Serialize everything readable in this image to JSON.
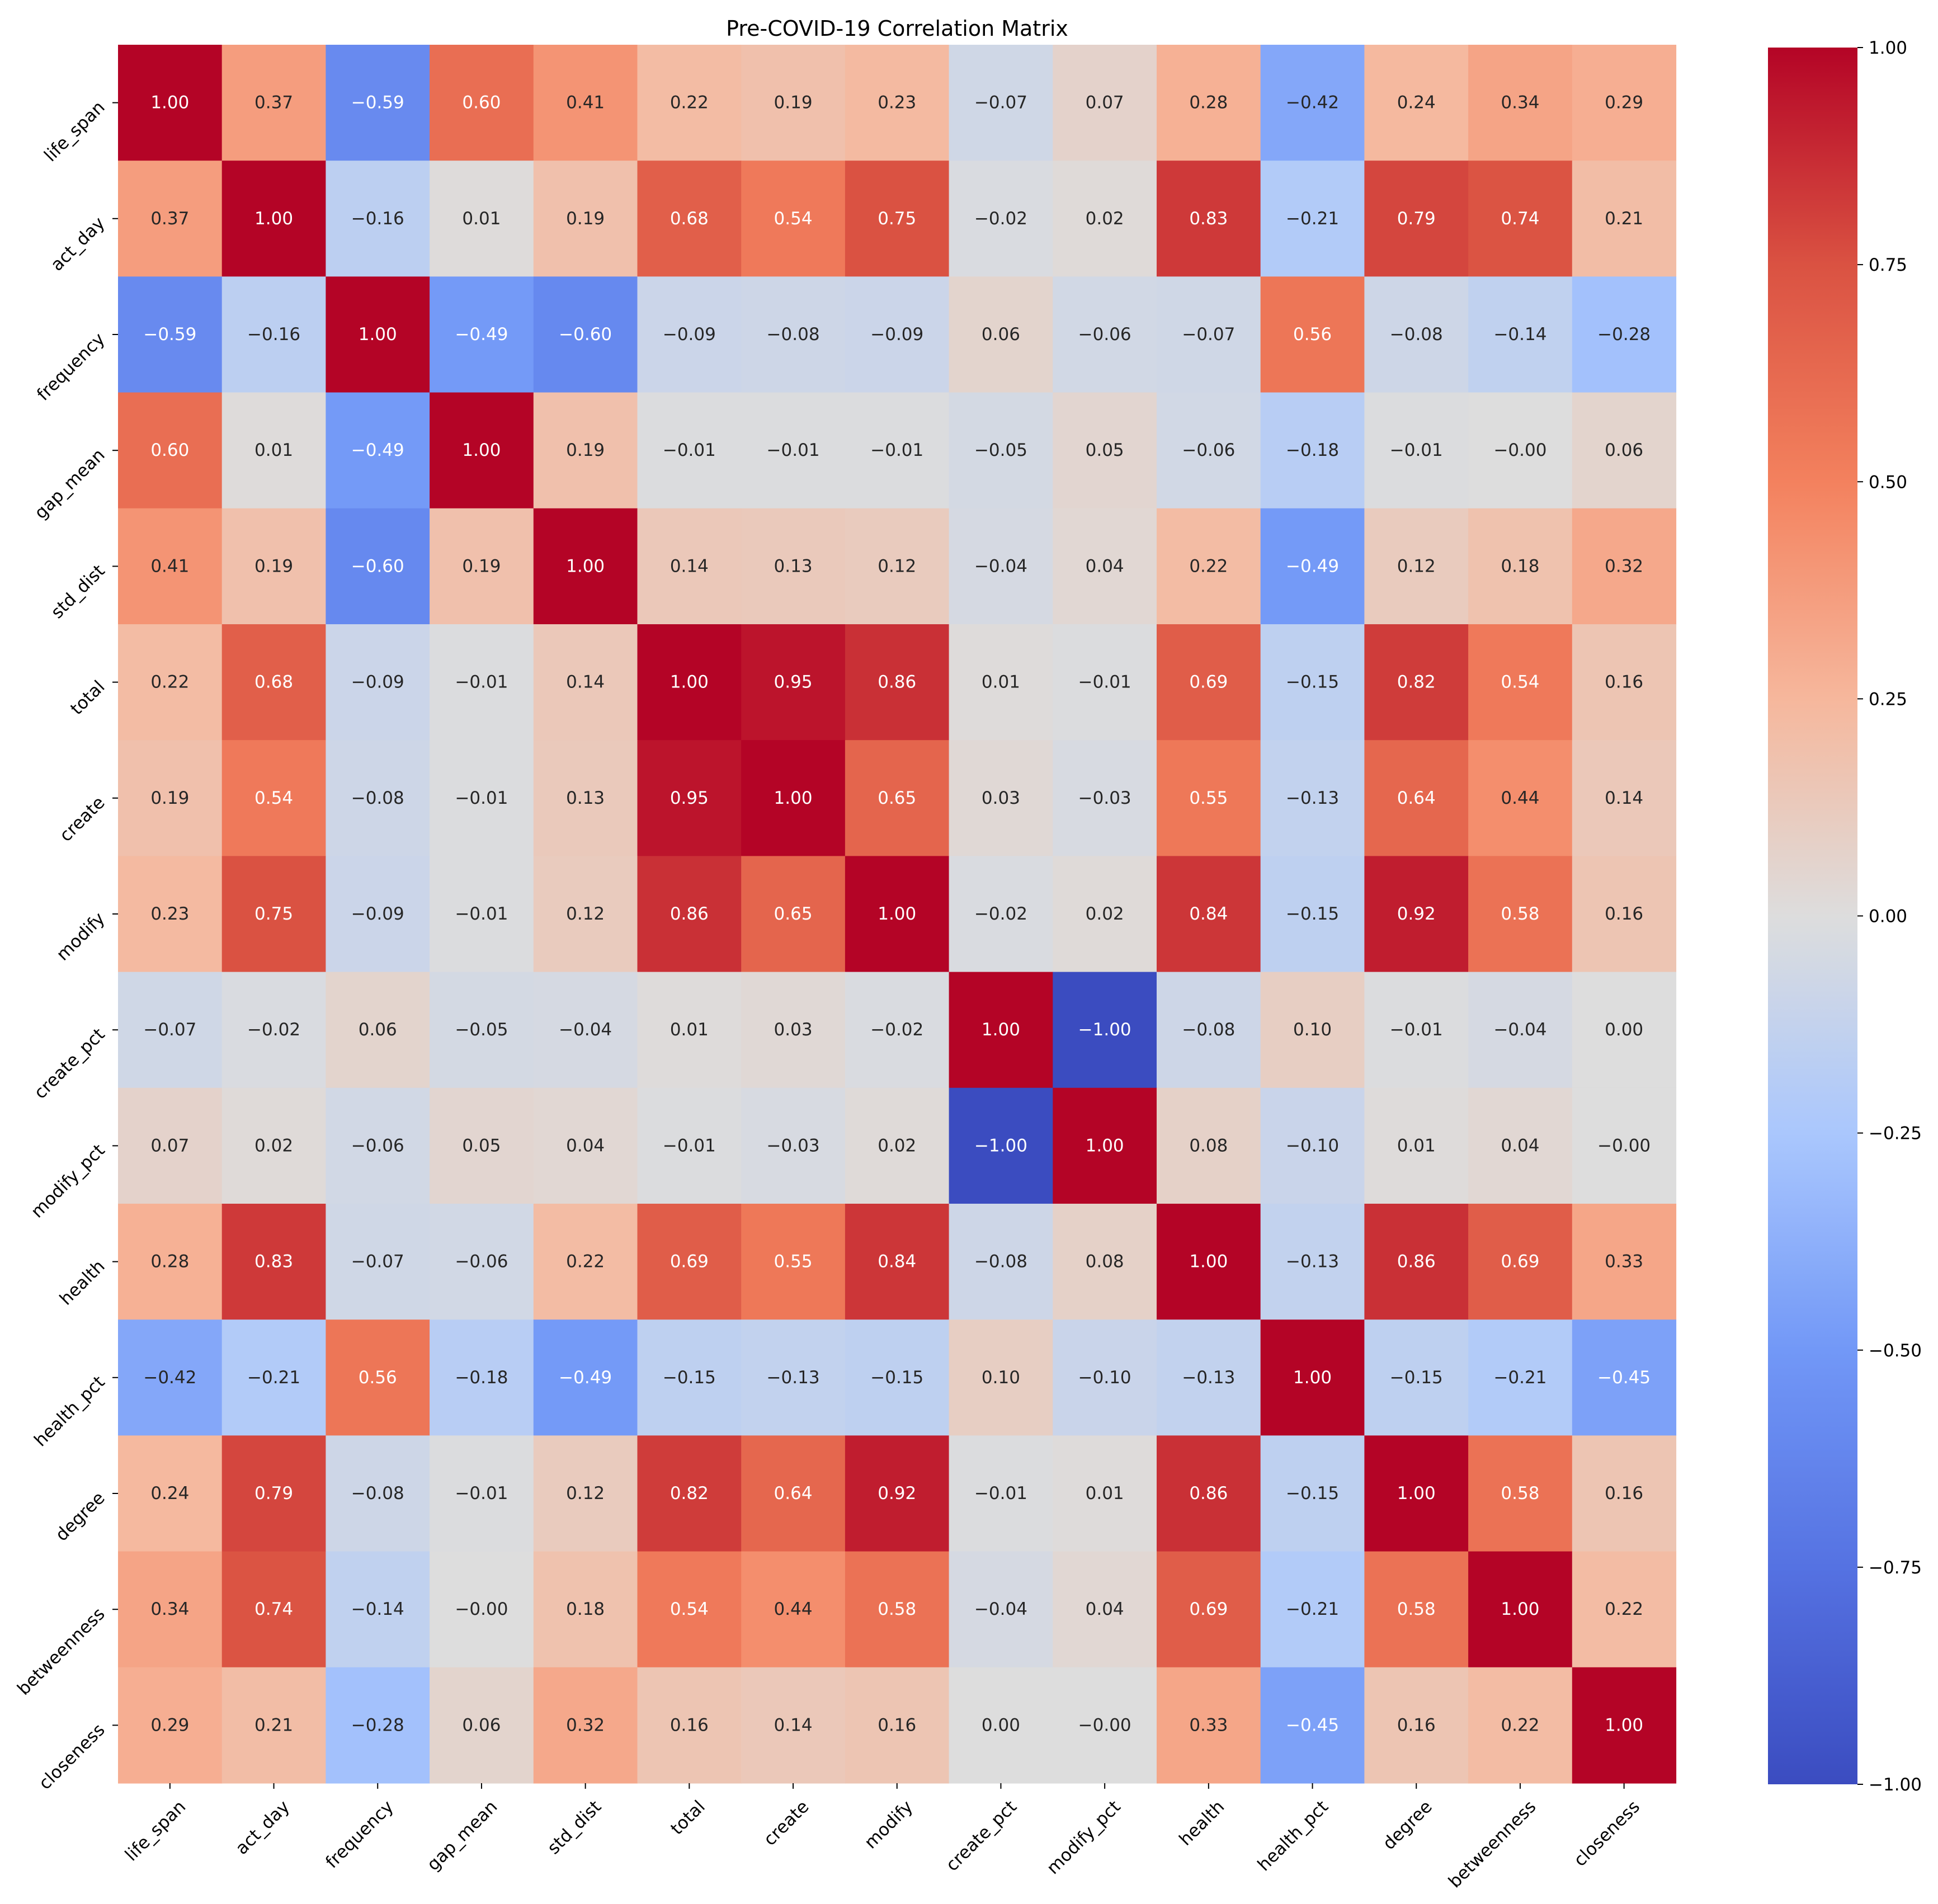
{
  "chart_data": {
    "type": "heatmap",
    "title": "Pre-COVID-19 Correlation Matrix",
    "xlabel": "",
    "ylabel": "",
    "labels": [
      "life_span",
      "act_day",
      "frequency",
      "gap_mean",
      "std_dist",
      "total",
      "create",
      "modify",
      "create_pct",
      "modify_pct",
      "health",
      "health_pct",
      "degree",
      "betweenness",
      "closeness"
    ],
    "values": [
      [
        1.0,
        0.37,
        -0.59,
        0.6,
        0.41,
        0.22,
        0.19,
        0.23,
        -0.07,
        0.07,
        0.28,
        -0.42,
        0.24,
        0.34,
        0.29
      ],
      [
        0.37,
        1.0,
        -0.16,
        0.01,
        0.19,
        0.68,
        0.54,
        0.75,
        -0.02,
        0.02,
        0.83,
        -0.21,
        0.79,
        0.74,
        0.21
      ],
      [
        -0.59,
        -0.16,
        1.0,
        -0.49,
        -0.6,
        -0.09,
        -0.08,
        -0.09,
        0.06,
        -0.06,
        -0.07,
        0.56,
        -0.08,
        -0.14,
        -0.28
      ],
      [
        0.6,
        0.01,
        -0.49,
        1.0,
        0.19,
        -0.01,
        -0.01,
        -0.01,
        -0.05,
        0.05,
        -0.06,
        -0.18,
        -0.01,
        -0.0,
        0.06
      ],
      [
        0.41,
        0.19,
        -0.6,
        0.19,
        1.0,
        0.14,
        0.13,
        0.12,
        -0.04,
        0.04,
        0.22,
        -0.49,
        0.12,
        0.18,
        0.32
      ],
      [
        0.22,
        0.68,
        -0.09,
        -0.01,
        0.14,
        1.0,
        0.95,
        0.86,
        0.01,
        -0.01,
        0.69,
        -0.15,
        0.82,
        0.54,
        0.16
      ],
      [
        0.19,
        0.54,
        -0.08,
        -0.01,
        0.13,
        0.95,
        1.0,
        0.65,
        0.03,
        -0.03,
        0.55,
        -0.13,
        0.64,
        0.44,
        0.14
      ],
      [
        0.23,
        0.75,
        -0.09,
        -0.01,
        0.12,
        0.86,
        0.65,
        1.0,
        -0.02,
        0.02,
        0.84,
        -0.15,
        0.92,
        0.58,
        0.16
      ],
      [
        -0.07,
        -0.02,
        0.06,
        -0.05,
        -0.04,
        0.01,
        0.03,
        -0.02,
        1.0,
        -1.0,
        -0.08,
        0.1,
        -0.01,
        -0.04,
        0.0
      ],
      [
        0.07,
        0.02,
        -0.06,
        0.05,
        0.04,
        -0.01,
        -0.03,
        0.02,
        -1.0,
        1.0,
        0.08,
        -0.1,
        0.01,
        0.04,
        -0.0
      ],
      [
        0.28,
        0.83,
        -0.07,
        -0.06,
        0.22,
        0.69,
        0.55,
        0.84,
        -0.08,
        0.08,
        1.0,
        -0.13,
        0.86,
        0.69,
        0.33
      ],
      [
        -0.42,
        -0.21,
        0.56,
        -0.18,
        -0.49,
        -0.15,
        -0.13,
        -0.15,
        0.1,
        -0.1,
        -0.13,
        1.0,
        -0.15,
        -0.21,
        -0.45
      ],
      [
        0.24,
        0.79,
        -0.08,
        -0.01,
        0.12,
        0.82,
        0.64,
        0.92,
        -0.01,
        0.01,
        0.86,
        -0.15,
        1.0,
        0.58,
        0.16
      ],
      [
        0.34,
        0.74,
        -0.14,
        -0.0,
        0.18,
        0.54,
        0.44,
        0.58,
        -0.04,
        0.04,
        0.69,
        -0.21,
        0.58,
        1.0,
        0.22
      ],
      [
        0.29,
        0.21,
        -0.28,
        0.06,
        0.32,
        0.16,
        0.14,
        0.16,
        0.0,
        -0.0,
        0.33,
        -0.45,
        0.16,
        0.22,
        1.0
      ]
    ],
    "value_format": "2 decimals",
    "colormap": "coolwarm",
    "vmin": -1.0,
    "vmax": 1.0,
    "colorbar_ticks": [
      1.0,
      0.75,
      0.5,
      0.25,
      0.0,
      -0.25,
      -0.5,
      -0.75,
      -1.0
    ],
    "colorbar_tick_labels": [
      "1.00",
      "0.75",
      "0.50",
      "0.25",
      "0.00",
      "−0.25",
      "−0.50",
      "−0.75",
      "−1.00"
    ],
    "colors": {
      "low": "#3b4cc0",
      "mid": "#dddddd",
      "high": "#b40426",
      "text_dark": "#262626",
      "text_light": "#ffffff"
    }
  }
}
